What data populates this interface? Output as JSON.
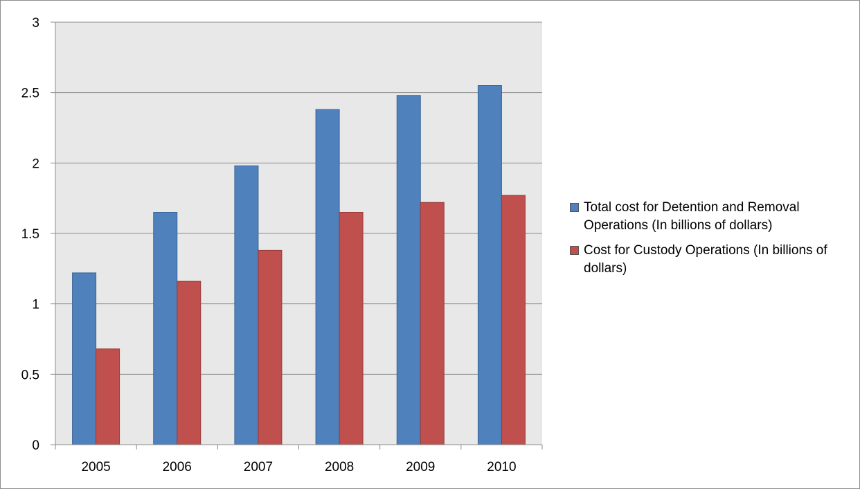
{
  "chart_data": {
    "type": "bar",
    "title": "",
    "xlabel": "",
    "ylabel": "",
    "categories": [
      "2005",
      "2006",
      "2007",
      "2008",
      "2009",
      "2010"
    ],
    "series": [
      {
        "name": "Total cost for Detention and Removal Operations (In billions of dollars)",
        "color": "#4f81bd",
        "values": [
          1.22,
          1.65,
          1.98,
          2.38,
          2.48,
          2.55
        ]
      },
      {
        "name": "Cost for Custody Operations (In billions of dollars)",
        "color": "#c0504d",
        "values": [
          0.68,
          1.16,
          1.38,
          1.65,
          1.72,
          1.77
        ]
      }
    ],
    "ylim": [
      0,
      3
    ],
    "yticks": [
      "0",
      "0.5",
      "1",
      "1.5",
      "2",
      "2.5",
      "3"
    ],
    "grid": true,
    "legend_position": "right",
    "plot_background": "#e8e8e8"
  }
}
